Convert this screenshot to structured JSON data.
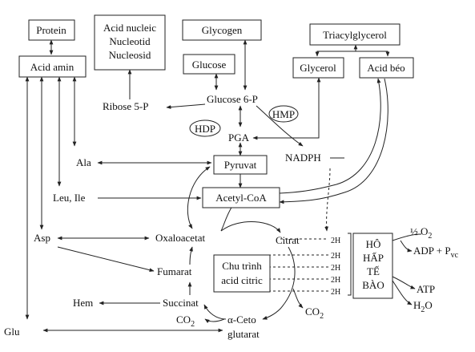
{
  "nodes": {
    "protein": "Protein",
    "acid_nucleic_1": "Acid nucleic",
    "acid_nucleic_2": "Nucleotid",
    "acid_nucleic_3": "Nucleosid",
    "glycogen": "Glycogen",
    "triacylglycerol": "Triacylglycerol",
    "acid_amin": "Acid amin",
    "glucose": "Glucose",
    "glycerol": "Glycerol",
    "acid_beo": "Acid béo",
    "ribose": "Ribose 5-P",
    "glucose6p": "Glucose 6-P",
    "hmp": "HMP",
    "hdp": "HDP",
    "pga": "PGA",
    "nadph": "NADPH",
    "ala": "Ala",
    "pyruvat": "Pyruvat",
    "leu_ile": "Leu, Ile",
    "acetyl_coa": "Acetyl-CoA",
    "asp": "Asp",
    "oxaloacetat": "Oxaloacetat",
    "citrat": "Citrat",
    "fumarat": "Fumarat",
    "krebs_1": "Chu trình",
    "krebs_2": "acid citric",
    "hem": "Hem",
    "succinat": "Succinat",
    "co2_left": "CO",
    "co2_right": "CO",
    "co2_sub": "2",
    "aceto_1": "α-Ceto",
    "aceto_2": "glutarat",
    "glu": "Glu",
    "h2_labels": [
      "2H",
      "2H",
      "2H",
      "2H",
      "2H"
    ],
    "respiration_1": "HÔ",
    "respiration_2": "HẤP",
    "respiration_3": "TẾ",
    "respiration_4": "BÀO",
    "o2_prefix": "½ O",
    "o2_sub": "2",
    "adp": "ADP + P",
    "adp_sub": "vc",
    "atp": "ATP",
    "h2o_h": "H",
    "h2o_sub": "2",
    "h2o_o": "O"
  }
}
